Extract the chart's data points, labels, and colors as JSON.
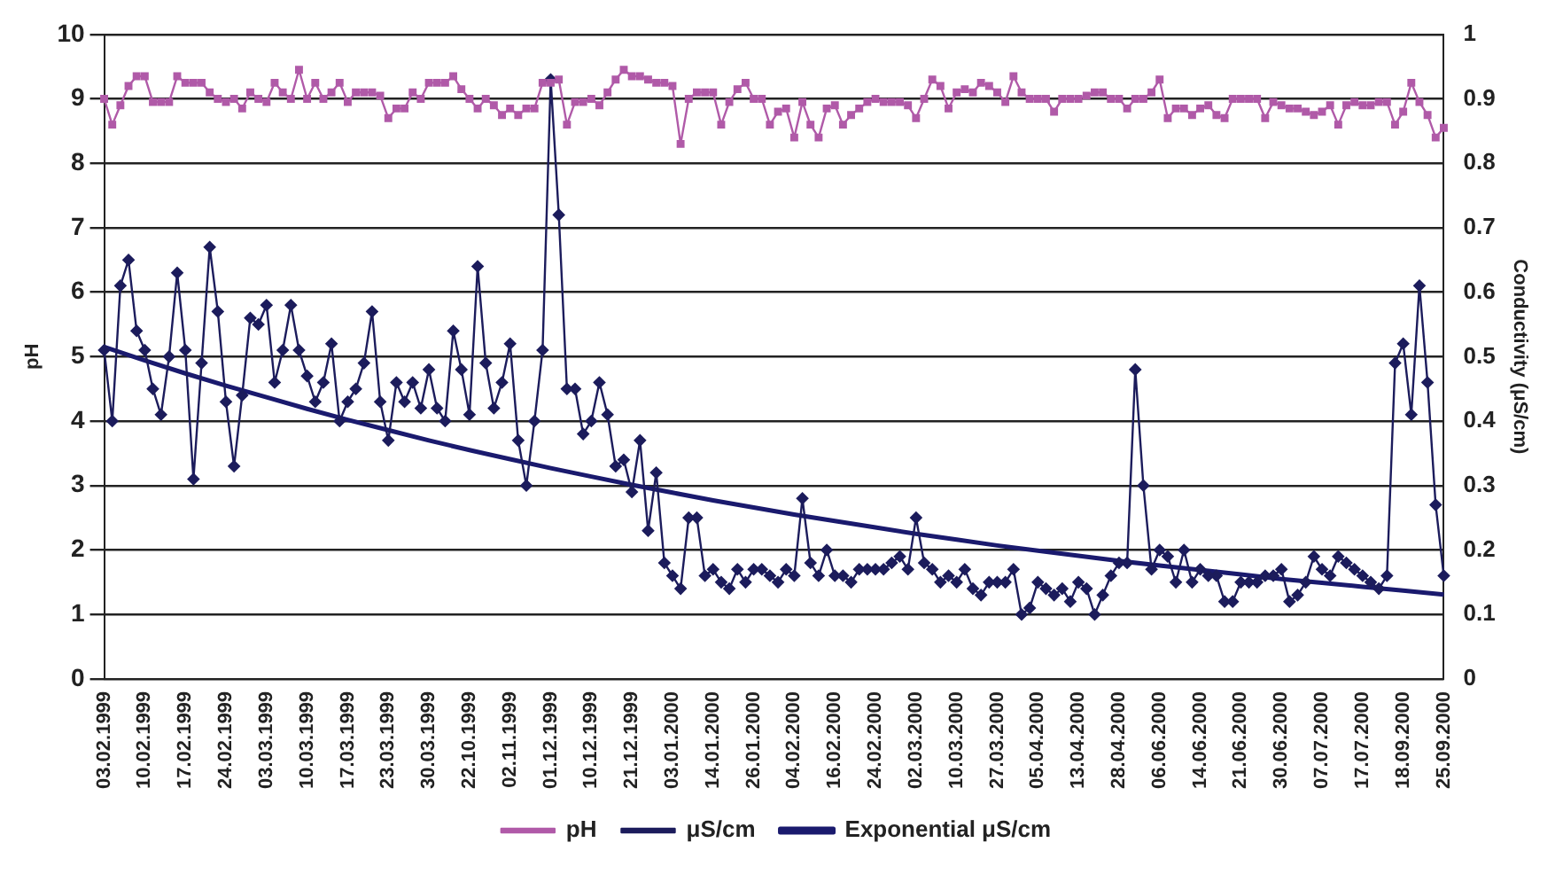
{
  "chart_data": {
    "type": "line",
    "ylabel": "pH",
    "y2label": "Conductivity (μS/cm)",
    "ylim": [
      0,
      10
    ],
    "yticks": [
      0,
      1,
      2,
      3,
      4,
      5,
      6,
      7,
      8,
      9,
      10
    ],
    "y2lim": [
      0,
      1
    ],
    "y2ticks": [
      0,
      0.1,
      0.2,
      0.3,
      0.4,
      0.5,
      0.6,
      0.7,
      0.8,
      0.9,
      1
    ],
    "grid": "y",
    "legend": "bottom",
    "categories": [
      "03.02.1999",
      null,
      null,
      null,
      null,
      "10.02.1999",
      null,
      null,
      null,
      null,
      "17.02.1999",
      null,
      null,
      null,
      null,
      "24.02.1999",
      null,
      null,
      null,
      null,
      "03.03.1999",
      null,
      null,
      null,
      null,
      "10.03.1999",
      null,
      null,
      null,
      null,
      "17.03.1999",
      null,
      null,
      null,
      null,
      "23.03.1999",
      null,
      null,
      null,
      null,
      "30.03.1999",
      null,
      null,
      null,
      null,
      "22.10.1999",
      null,
      null,
      null,
      null,
      "02.11.1999",
      null,
      null,
      null,
      null,
      "01.12.1999",
      null,
      null,
      null,
      null,
      "10.12.1999",
      null,
      null,
      null,
      null,
      "21.12.1999",
      null,
      null,
      null,
      null,
      "03.01.2000",
      null,
      null,
      null,
      null,
      "14.01.2000",
      null,
      null,
      null,
      null,
      "26.01.2000",
      null,
      null,
      null,
      null,
      "04.02.2000",
      null,
      null,
      null,
      null,
      "16.02.2000",
      null,
      null,
      null,
      null,
      "24.02.2000",
      null,
      null,
      null,
      null,
      "02.03.2000",
      null,
      null,
      null,
      null,
      "10.03.2000",
      null,
      null,
      null,
      null,
      "27.03.2000",
      null,
      null,
      null,
      null,
      "05.04.2000",
      null,
      null,
      null,
      null,
      "13.04.2000",
      null,
      null,
      null,
      null,
      "28.04.2000",
      null,
      null,
      null,
      null,
      "06.06.2000",
      null,
      null,
      null,
      null,
      "14.06.2000",
      null,
      null,
      null,
      null,
      "21.06.2000",
      null,
      null,
      null,
      null,
      "30.06.2000",
      null,
      null,
      null,
      null,
      "07.07.2000",
      null,
      null,
      null,
      null,
      "17.07.2000",
      null,
      null,
      null,
      null,
      "18.09.2000",
      null,
      null,
      null,
      null,
      "25.09.2000"
    ],
    "series": [
      {
        "name": "pH",
        "color": "#b05aa8",
        "marker": "square",
        "values": [
          9.0,
          8.6,
          8.9,
          9.2,
          9.35,
          9.35,
          8.95,
          8.95,
          8.95,
          9.35,
          9.25,
          9.25,
          9.25,
          9.1,
          9.0,
          8.95,
          9.0,
          8.85,
          9.1,
          9.0,
          8.95,
          9.25,
          9.1,
          9.0,
          9.45,
          9.0,
          9.25,
          9.0,
          9.1,
          9.25,
          8.95,
          9.1,
          9.1,
          9.1,
          9.05,
          8.7,
          8.85,
          8.85,
          9.1,
          9.0,
          9.25,
          9.25,
          9.25,
          9.35,
          9.15,
          9.0,
          8.85,
          9.0,
          8.9,
          8.75,
          8.85,
          8.75,
          8.85,
          8.85,
          9.25,
          9.25,
          9.3,
          8.6,
          8.95,
          8.95,
          9.0,
          8.9,
          9.1,
          9.3,
          9.45,
          9.35,
          9.35,
          9.3,
          9.25,
          9.25,
          9.2,
          8.3,
          9.0,
          9.1,
          9.1,
          9.1,
          8.6,
          8.95,
          9.15,
          9.25,
          9.0,
          9.0,
          8.6,
          8.8,
          8.85,
          8.4,
          8.95,
          8.6,
          8.4,
          8.85,
          8.9,
          8.6,
          8.75,
          8.85,
          8.95,
          9.0,
          8.95,
          8.95,
          8.95,
          8.9,
          8.7,
          9.0,
          9.3,
          9.2,
          8.85,
          9.1,
          9.15,
          9.1,
          9.25,
          9.2,
          9.1,
          8.95,
          9.35,
          9.1,
          9.0,
          9.0,
          9.0,
          8.8,
          9.0,
          9.0,
          9.0,
          9.05,
          9.1,
          9.1,
          9.0,
          9.0,
          8.85,
          9.0,
          9.0,
          9.1,
          9.3,
          8.7,
          8.85,
          8.85,
          8.75,
          8.85,
          8.9,
          8.75,
          8.7,
          9.0,
          9.0,
          9.0,
          9.0,
          8.7,
          8.95,
          8.9,
          8.85,
          8.85,
          8.8,
          8.75,
          8.8,
          8.9,
          8.6,
          8.9,
          8.95,
          8.9,
          8.9,
          8.95,
          8.95,
          8.6,
          8.8,
          9.25,
          8.95,
          8.75,
          8.4,
          8.55
        ]
      },
      {
        "name": "μS/cm",
        "color": "#1c1c5c",
        "marker": "diamond",
        "axis": "y2",
        "values": [
          0.51,
          0.4,
          0.61,
          0.65,
          0.54,
          0.51,
          0.45,
          0.41,
          0.5,
          0.63,
          0.51,
          0.31,
          0.49,
          0.67,
          0.57,
          0.43,
          0.33,
          0.44,
          0.56,
          0.55,
          0.58,
          0.46,
          0.51,
          0.58,
          0.51,
          0.47,
          0.43,
          0.46,
          0.52,
          0.4,
          0.43,
          0.45,
          0.49,
          0.57,
          0.43,
          0.37,
          0.46,
          0.43,
          0.46,
          0.42,
          0.48,
          0.42,
          0.4,
          0.54,
          0.48,
          0.41,
          0.64,
          0.49,
          0.42,
          0.46,
          0.52,
          0.37,
          0.3,
          0.4,
          0.51,
          0.93,
          0.72,
          0.45,
          0.45,
          0.38,
          0.4,
          0.46,
          0.41,
          0.33,
          0.34,
          0.29,
          0.37,
          0.23,
          0.32,
          0.18,
          0.16,
          0.14,
          0.25,
          0.25,
          0.16,
          0.17,
          0.15,
          0.14,
          0.17,
          0.15,
          0.17,
          0.17,
          0.16,
          0.15,
          0.17,
          0.16,
          0.28,
          0.18,
          0.16,
          0.2,
          0.16,
          0.16,
          0.15,
          0.17,
          0.17,
          0.17,
          0.17,
          0.18,
          0.19,
          0.17,
          0.25,
          0.18,
          0.17,
          0.15,
          0.16,
          0.15,
          0.17,
          0.14,
          0.13,
          0.15,
          0.15,
          0.15,
          0.17,
          0.1,
          0.11,
          0.15,
          0.14,
          0.13,
          0.14,
          0.12,
          0.15,
          0.14,
          0.1,
          0.13,
          0.16,
          0.18,
          0.18,
          0.48,
          0.3,
          0.17,
          0.2,
          0.19,
          0.15,
          0.2,
          0.15,
          0.17,
          0.16,
          0.16,
          0.12,
          0.12,
          0.15,
          0.15,
          0.15,
          0.16,
          0.16,
          0.17,
          0.12,
          0.13,
          0.15,
          0.19,
          0.17,
          0.16,
          0.19,
          0.18,
          0.17,
          0.16,
          0.15,
          0.14,
          0.16,
          0.49,
          0.52,
          0.41,
          0.61,
          0.46,
          0.27,
          0.16
        ]
      },
      {
        "name": "Exponential μS/cm",
        "color": "#1a1a6e",
        "marker": "none",
        "axis": "y2",
        "x": [
          "03.02.1999",
          "10.02.1999",
          "17.02.1999",
          "24.02.1999",
          "03.03.1999",
          "10.03.1999",
          "17.03.1999",
          "23.03.1999",
          "30.03.1999",
          "22.10.1999",
          "02.11.1999",
          "01.12.1999",
          "10.12.1999",
          "21.12.1999",
          "03.01.2000",
          "14.01.2000",
          "26.01.2000",
          "04.02.2000",
          "16.02.2000",
          "24.02.2000",
          "02.03.2000",
          "10.03.2000",
          "27.03.2000",
          "05.04.2000",
          "13.04.2000",
          "28.04.2000",
          "06.06.2000",
          "14.06.2000",
          "21.06.2000",
          "30.06.2000",
          "07.07.2000",
          "17.07.2000",
          "18.09.2000",
          "25.09.2000"
        ],
        "values": [
          0.515,
          0.494,
          0.474,
          0.455,
          0.437,
          0.419,
          0.402,
          0.386,
          0.37,
          0.355,
          0.341,
          0.327,
          0.314,
          0.301,
          0.289,
          0.277,
          0.266,
          0.255,
          0.245,
          0.235,
          0.225,
          0.216,
          0.207,
          0.199,
          0.191,
          0.183,
          0.176,
          0.169,
          0.162,
          0.155,
          0.149,
          0.143,
          0.137,
          0.131
        ]
      }
    ]
  }
}
